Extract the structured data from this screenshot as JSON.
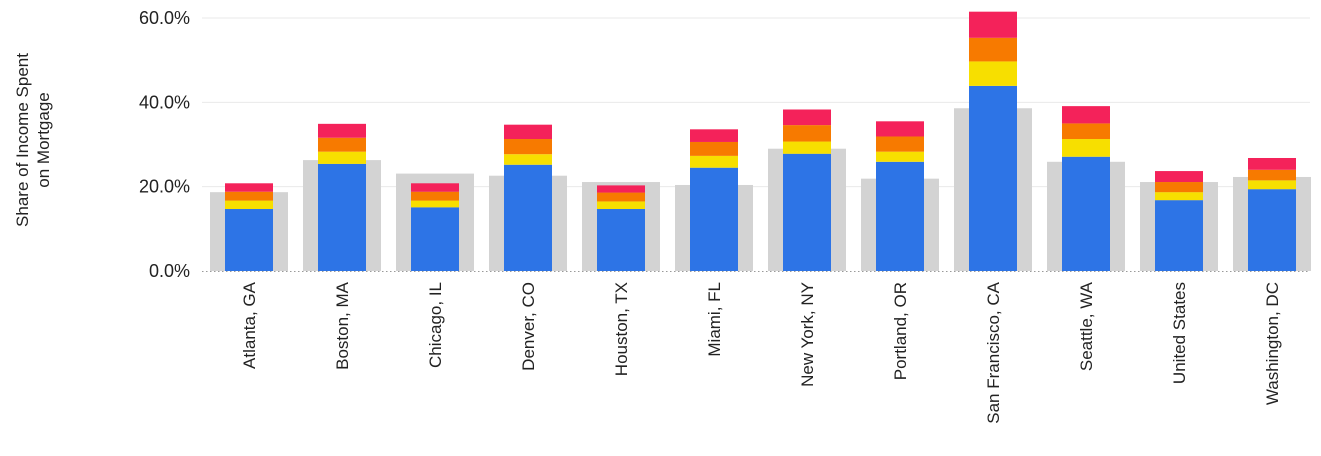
{
  "chart_data": {
    "type": "bar",
    "title": "",
    "ylabel_lines": [
      "Share of Income Spent",
      "on Mortgage"
    ],
    "xlabel": "",
    "ylim": [
      0,
      60
    ],
    "yticks": [
      0,
      20,
      40,
      60
    ],
    "ytick_labels": [
      "0.0%",
      "20.0%",
      "40.0%",
      "60.0%"
    ],
    "grid": true,
    "categories": [
      "Atlanta, GA",
      "Boston, MA",
      "Chicago, IL",
      "Denver, CO",
      "Houston, TX",
      "Miami, FL",
      "New York, NY",
      "Portland, OR",
      "San Francisco, CA",
      "Seattle, WA",
      "United States",
      "Washington, DC"
    ],
    "background_series": {
      "values": [
        18.7,
        26.3,
        23.1,
        22.6,
        21.1,
        20.4,
        29.0,
        21.9,
        38.6,
        25.9,
        21.1,
        22.3
      ],
      "color": "#d3d3d3"
    },
    "series": [
      {
        "values": [
          14.7,
          25.4,
          15.1,
          25.2,
          14.7,
          24.5,
          27.8,
          25.9,
          43.9,
          27.1,
          16.8,
          19.4
        ],
        "color": "#2d74e6"
      },
      {
        "values": [
          2.0,
          2.9,
          1.6,
          2.5,
          1.8,
          2.8,
          2.9,
          2.4,
          5.8,
          4.2,
          1.9,
          2.1
        ],
        "color": "#f7df00"
      },
      {
        "values": [
          2.1,
          3.3,
          2.1,
          3.6,
          2.1,
          3.3,
          3.9,
          3.6,
          5.6,
          3.7,
          2.4,
          2.5
        ],
        "color": "#f77a00"
      },
      {
        "values": [
          2.0,
          3.3,
          2.0,
          3.4,
          1.7,
          3.0,
          3.7,
          3.6,
          6.2,
          4.1,
          2.6,
          2.8
        ],
        "color": "#f4225a"
      }
    ]
  }
}
